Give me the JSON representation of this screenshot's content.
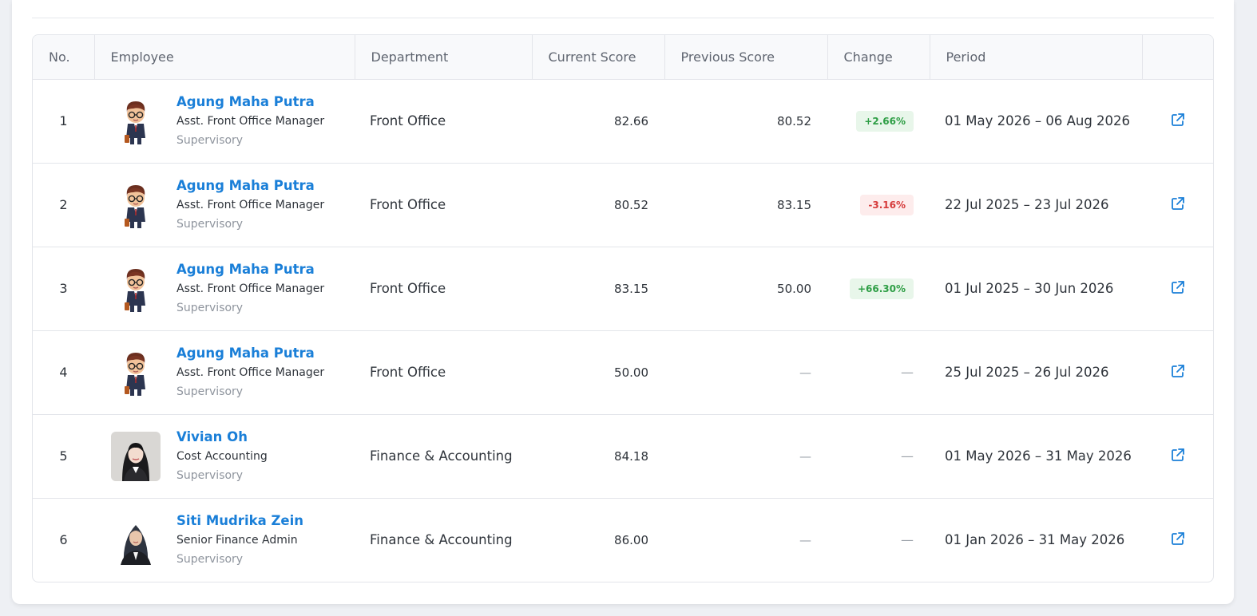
{
  "table": {
    "headers": [
      "No.",
      "Employee",
      "Department",
      "Current Score",
      "Previous Score",
      "Change",
      "Period",
      ""
    ],
    "rows": [
      {
        "no": "1",
        "name": "Agung Maha Putra",
        "position": "Asst. Front Office Manager",
        "level": "Supervisory",
        "department": "Front Office",
        "current": "82.66",
        "previous": "80.52",
        "change": "+2.66%",
        "change_dir": "up",
        "period": "01 May 2026 – 06 Aug 2026",
        "avatar": "cartoon-avatar"
      },
      {
        "no": "2",
        "name": "Agung Maha Putra",
        "position": "Asst. Front Office Manager",
        "level": "Supervisory",
        "department": "Front Office",
        "current": "80.52",
        "previous": "83.15",
        "change": "-3.16%",
        "change_dir": "down",
        "period": "22 Jul 2025 – 23 Jul 2026",
        "avatar": "cartoon-avatar"
      },
      {
        "no": "3",
        "name": "Agung Maha Putra",
        "position": "Asst. Front Office Manager",
        "level": "Supervisory",
        "department": "Front Office",
        "current": "83.15",
        "previous": "50.00",
        "change": "+66.30%",
        "change_dir": "up",
        "period": "01 Jul 2025 – 30 Jun 2026",
        "avatar": "cartoon-avatar"
      },
      {
        "no": "4",
        "name": "Agung Maha Putra",
        "position": "Asst. Front Office Manager",
        "level": "Supervisory",
        "department": "Front Office",
        "current": "50.00",
        "previous": "—",
        "change": "—",
        "change_dir": "none",
        "period": "25 Jul 2025 – 26 Jul 2026",
        "avatar": "cartoon-avatar"
      },
      {
        "no": "5",
        "name": "Vivian Oh",
        "position": "Cost Accounting",
        "level": "Supervisory",
        "department": "Finance & Accounting",
        "current": "84.18",
        "previous": "—",
        "change": "—",
        "change_dir": "none",
        "period": "01 May 2026 – 31 May 2026",
        "avatar": "photo-woman"
      },
      {
        "no": "6",
        "name": "Siti Mudrika Zein",
        "position": "Senior Finance Admin",
        "level": "Supervisory",
        "department": "Finance & Accounting",
        "current": "86.00",
        "previous": "—",
        "change": "—",
        "change_dir": "none",
        "period": "01 Jan 2026 – 31 May 2026",
        "avatar": "photo-hijab"
      }
    ]
  },
  "icons": {
    "row_action": "external-link-icon"
  },
  "colors": {
    "link": "#1a7fd8",
    "positive": "#2e9e45",
    "negative": "#d63b3b"
  }
}
